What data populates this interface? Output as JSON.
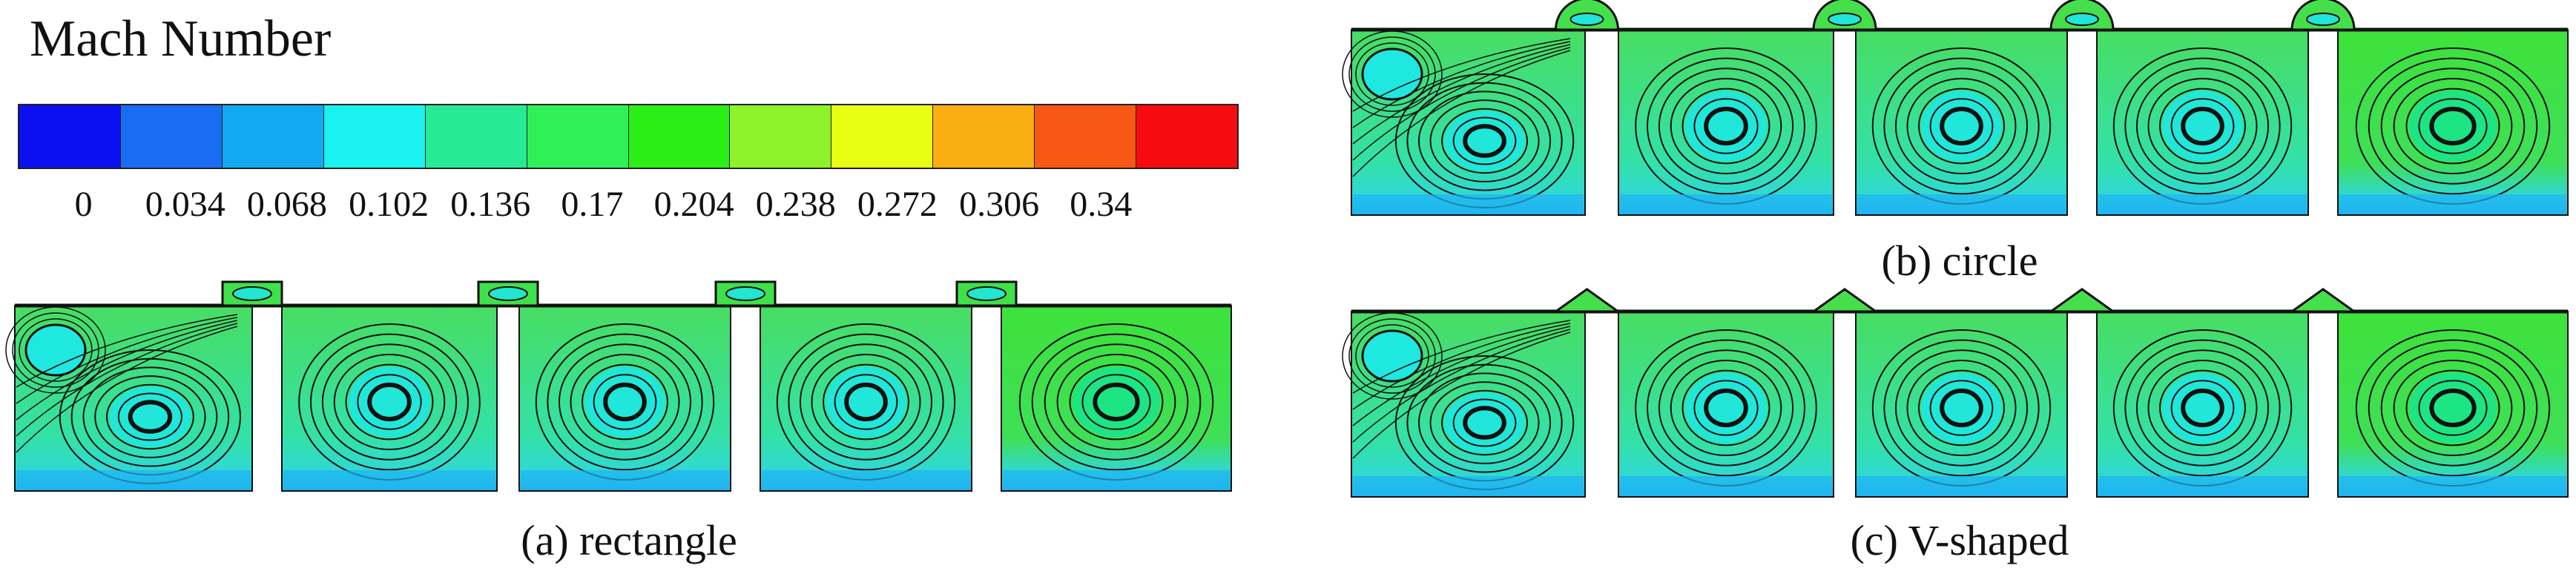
{
  "legend": {
    "title": "Mach Number",
    "ticks": [
      "0",
      "0.034",
      "0.068",
      "0.102",
      "0.136",
      "0.17",
      "0.204",
      "0.238",
      "0.272",
      "0.306",
      "0.34"
    ],
    "colors": [
      "#0a10f0",
      "#1a6cf2",
      "#12a9f2",
      "#19f2ee",
      "#27ea96",
      "#2ff056",
      "#2aee15",
      "#8df22a",
      "#e8ff14",
      "#fbae11",
      "#f75815",
      "#f50b10"
    ],
    "range": [
      0,
      0.34
    ]
  },
  "panels": [
    {
      "id": "rectangle",
      "caption": "(a) rectangle",
      "lid": "rectangle"
    },
    {
      "id": "circle",
      "caption": "(b) circle",
      "lid": "circle"
    },
    {
      "id": "v-shaped",
      "caption": "(c) V-shaped",
      "lid": "v"
    }
  ]
}
